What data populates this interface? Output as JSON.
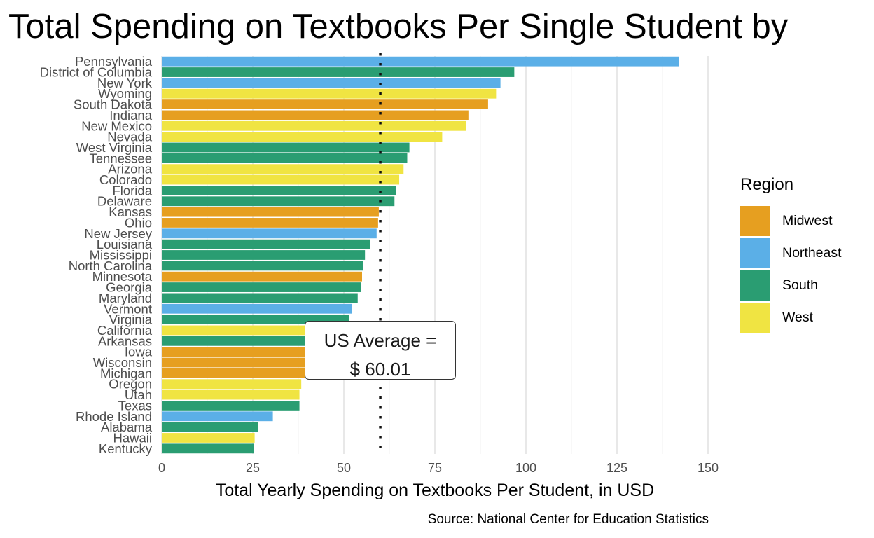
{
  "chart_data": {
    "type": "bar",
    "orientation": "horizontal",
    "title": "Total Spending on Textbooks Per Single Student by",
    "xlabel": "Total Yearly Spending on Textbooks Per Student, in USD",
    "ylabel": "",
    "source": "Source: National Center for Education Statistics",
    "xlim": [
      0,
      150
    ],
    "xticks": [
      0,
      25,
      50,
      75,
      100,
      125,
      150
    ],
    "grid": true,
    "legend": {
      "title": "Region",
      "position": "right",
      "entries": [
        {
          "name": "Midwest",
          "color": "#E69F20"
        },
        {
          "name": "Northeast",
          "color": "#5BAFE7"
        },
        {
          "name": "South",
          "color": "#2A9D72"
        },
        {
          "name": "West",
          "color": "#F0E442"
        }
      ]
    },
    "reference_line": {
      "value": 60.01,
      "style": "dotted",
      "label_line1": "US Average =",
      "label_line2": "$ 60.01"
    },
    "bars": [
      {
        "state": "Pennsylvania",
        "value": 142.0,
        "region": "Northeast"
      },
      {
        "state": "District of Columbia",
        "value": 96.8,
        "region": "South"
      },
      {
        "state": "New York",
        "value": 93.0,
        "region": "Northeast"
      },
      {
        "state": "Wyoming",
        "value": 91.8,
        "region": "West"
      },
      {
        "state": "South Dakota",
        "value": 89.6,
        "region": "Midwest"
      },
      {
        "state": "Indiana",
        "value": 84.2,
        "region": "Midwest"
      },
      {
        "state": "New Mexico",
        "value": 83.6,
        "region": "West"
      },
      {
        "state": "Nevada",
        "value": 77.0,
        "region": "West"
      },
      {
        "state": "West Virginia",
        "value": 68.0,
        "region": "South"
      },
      {
        "state": "Tennessee",
        "value": 67.4,
        "region": "South"
      },
      {
        "state": "Arizona",
        "value": 66.4,
        "region": "West"
      },
      {
        "state": "Colorado",
        "value": 65.2,
        "region": "West"
      },
      {
        "state": "Florida",
        "value": 64.3,
        "region": "South"
      },
      {
        "state": "Delaware",
        "value": 63.9,
        "region": "South"
      },
      {
        "state": "Kansas",
        "value": 59.6,
        "region": "Midwest"
      },
      {
        "state": "Ohio",
        "value": 59.4,
        "region": "Midwest"
      },
      {
        "state": "New Jersey",
        "value": 59.0,
        "region": "Northeast"
      },
      {
        "state": "Louisiana",
        "value": 57.2,
        "region": "South"
      },
      {
        "state": "Mississippi",
        "value": 55.8,
        "region": "South"
      },
      {
        "state": "North Carolina",
        "value": 55.2,
        "region": "South"
      },
      {
        "state": "Minnesota",
        "value": 55.0,
        "region": "Midwest"
      },
      {
        "state": "Georgia",
        "value": 54.8,
        "region": "South"
      },
      {
        "state": "Maryland",
        "value": 53.8,
        "region": "South"
      },
      {
        "state": "Vermont",
        "value": 52.2,
        "region": "Northeast"
      },
      {
        "state": "Virginia",
        "value": 51.4,
        "region": "South"
      },
      {
        "state": "California",
        "value": 42.0,
        "region": "West"
      },
      {
        "state": "Arkansas",
        "value": 41.5,
        "region": "South"
      },
      {
        "state": "Iowa",
        "value": 41.0,
        "region": "Midwest"
      },
      {
        "state": "Wisconsin",
        "value": 40.5,
        "region": "Midwest"
      },
      {
        "state": "Michigan",
        "value": 40.0,
        "region": "Midwest"
      },
      {
        "state": "Oregon",
        "value": 38.3,
        "region": "West"
      },
      {
        "state": "Utah",
        "value": 37.8,
        "region": "West"
      },
      {
        "state": "Texas",
        "value": 37.8,
        "region": "South"
      },
      {
        "state": "Rhode Island",
        "value": 30.5,
        "region": "Northeast"
      },
      {
        "state": "Alabama",
        "value": 26.5,
        "region": "South"
      },
      {
        "state": "Hawaii",
        "value": 25.5,
        "region": "West"
      },
      {
        "state": "Kentucky",
        "value": 25.2,
        "region": "South"
      }
    ]
  }
}
